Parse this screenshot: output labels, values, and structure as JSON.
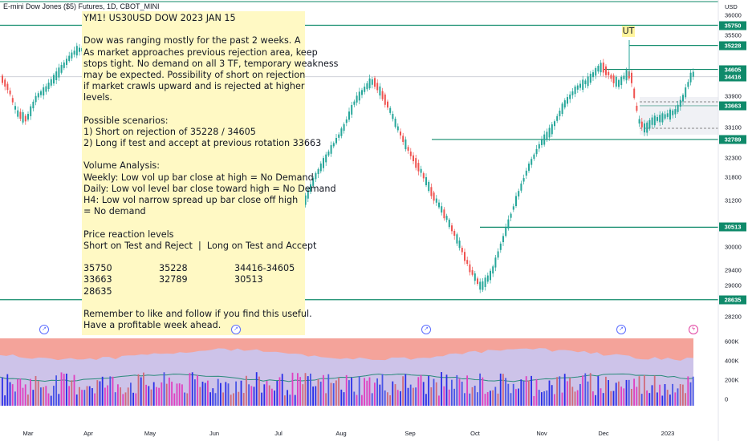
{
  "header": {
    "symbol_title": "E-mini Dow Jones ($5) Futures, 1D, CBOT_MINI"
  },
  "note": {
    "lines": [
      "YM1! US30USD DOW 2023 JAN 15",
      "",
      "Dow was ranging mostly for the past 2 weeks. A",
      "As market approaches previous rejection area, keep",
      "stops tight. No demand on all 3 TF, temporary weakness",
      "may be expected. Possibility of short on rejection",
      "if market crawls upward and is rejected at higher",
      "levels.",
      "",
      "Possible scenarios:",
      "1) Short on rejection of 35228 / 34605",
      "2) Long if test and accept at previous rotation 33663",
      "",
      "Volume Analysis:",
      "Weekly: Low vol up bar close at high = No Demand",
      "Daily: Low vol level bar close toward high = No Demand",
      "H4: Low vol narrow spread up bar close off high",
      "= No demand",
      "",
      "Price reaction levels",
      "Short on Test and Reject  |  Long on Test and Accept",
      ""
    ],
    "levels_table": [
      [
        "35750",
        "35228",
        "34416-34605"
      ],
      [
        "33663",
        "32789",
        "30513"
      ],
      [
        "28635",
        "",
        ""
      ]
    ],
    "footer_lines": [
      "",
      "Remember to like and follow if you find this useful.",
      "Have a profitable week ahead."
    ]
  },
  "price_axis": {
    "currency": "USD",
    "ticks": [
      "36000",
      "35500",
      "33900",
      "33100",
      "32300",
      "31800",
      "31200",
      "30000",
      "29400",
      "29000",
      "28200"
    ],
    "level_boxes": [
      "35750",
      "35228",
      "34605",
      "34416",
      "33663",
      "32789",
      "30513",
      "28635"
    ]
  },
  "volume_axis": {
    "ticks": [
      "600K",
      "400K",
      "200K",
      "0"
    ]
  },
  "time_axis": {
    "labels": [
      "Mar",
      "Apr",
      "May",
      "Jun",
      "Jul",
      "Aug",
      "Sep",
      "Oct",
      "Nov",
      "Dec",
      "2023"
    ]
  },
  "annotation": {
    "ut_label": "UT"
  },
  "colors": {
    "up": "#26a69a",
    "down": "#ef5350",
    "level_line": "#0f8a6a",
    "note_bg": "#fff9c4",
    "volume_bg": "#f4a39a"
  }
}
